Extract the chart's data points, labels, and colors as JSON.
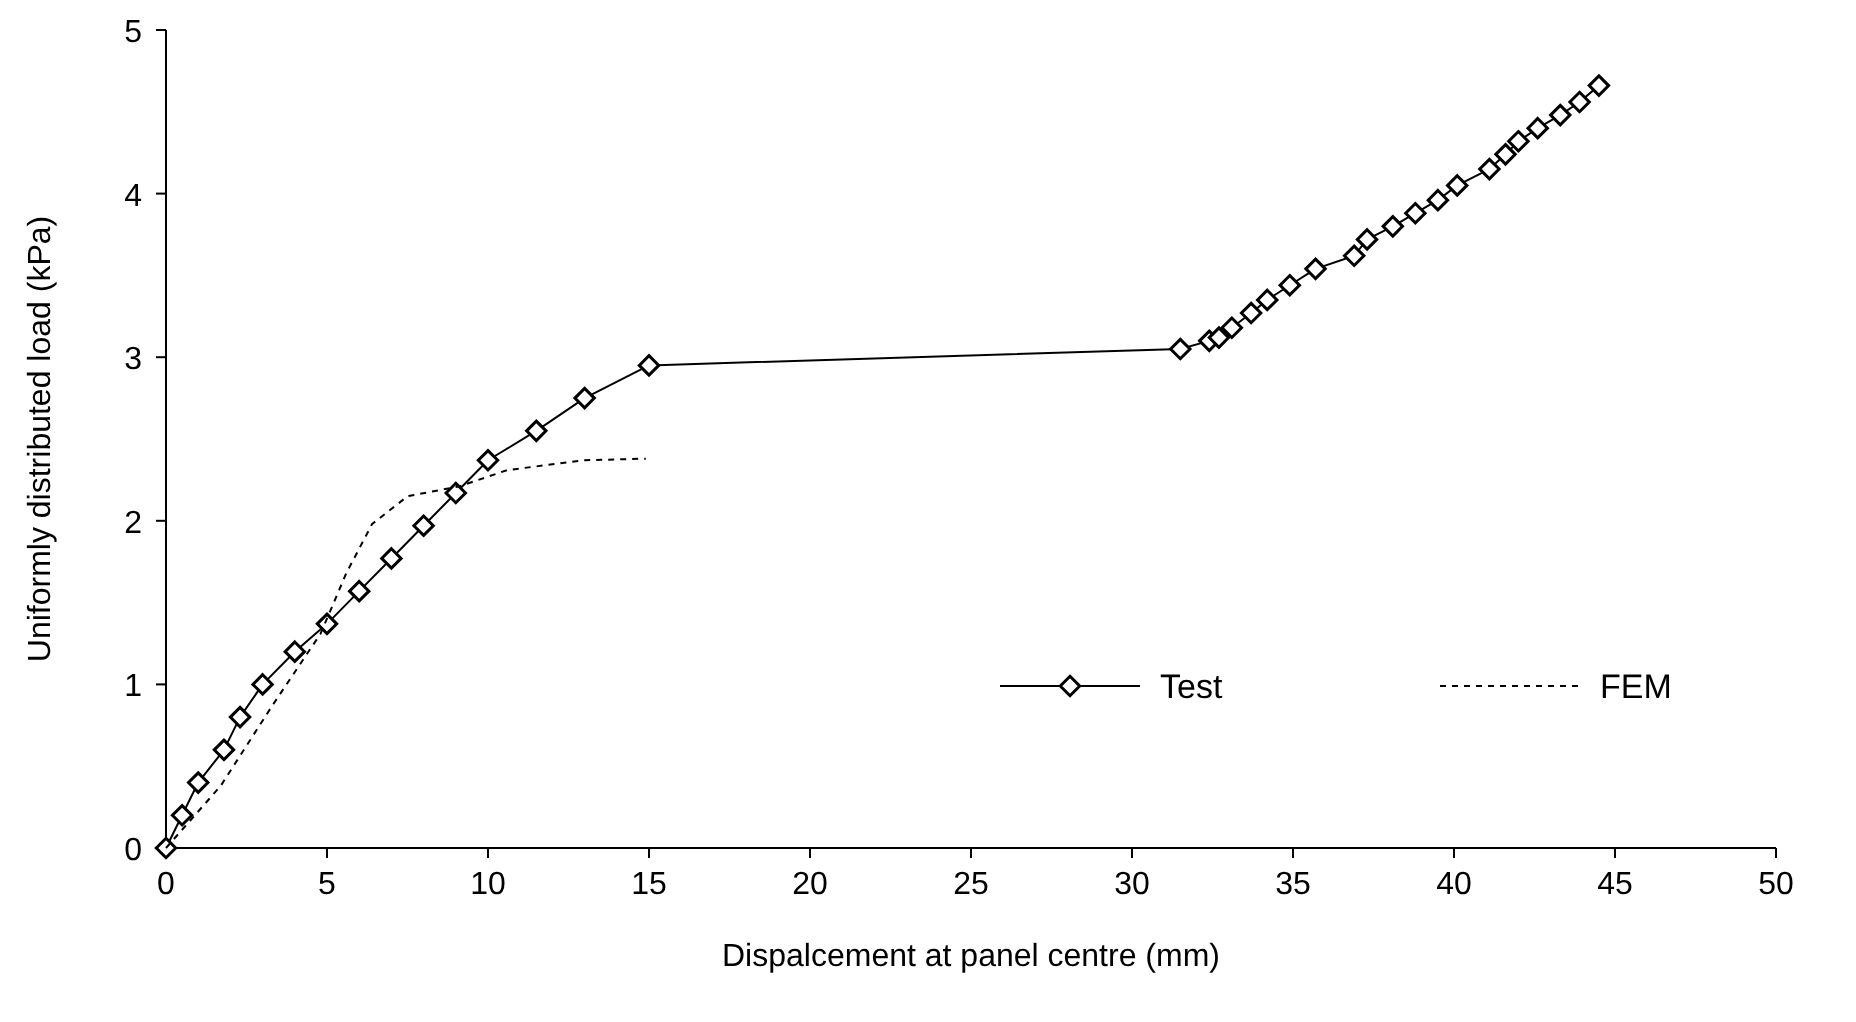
{
  "chart_data": {
    "type": "line",
    "xlabel": "Dispalcement at panel centre (mm)",
    "ylabel": "Uniformly distributed load (kPa)",
    "xlim": [
      0,
      50
    ],
    "xticks": [
      0,
      5,
      10,
      15,
      20,
      25,
      30,
      35,
      40,
      45,
      50
    ],
    "ylim": [
      0,
      5
    ],
    "yticks": [
      0,
      1,
      2,
      3,
      4,
      5
    ],
    "grid": false,
    "legend": "bottom right",
    "series": [
      {
        "name": "Test",
        "color": "#000000",
        "marker": "diamond",
        "line_style": "solid",
        "x": [
          0,
          0.5,
          1,
          1.8,
          2.3,
          3,
          4,
          5,
          6,
          7,
          8,
          9,
          10,
          11.5,
          13,
          15,
          31.5,
          32.4,
          32.7,
          33.1,
          33.7,
          34.2,
          34.9,
          35.7,
          36.9,
          37.3,
          38.1,
          38.8,
          39.5,
          40.1,
          41.1,
          41.6,
          42,
          42.6,
          43.3,
          43.9,
          44.5
        ],
        "values": [
          0,
          0.2,
          0.4,
          0.6,
          0.8,
          1,
          1.2,
          1.37,
          1.57,
          1.77,
          1.97,
          2.17,
          2.37,
          2.55,
          2.75,
          2.95,
          3.05,
          3.1,
          3.12,
          3.18,
          3.27,
          3.35,
          3.44,
          3.54,
          3.62,
          3.72,
          3.8,
          3.88,
          3.96,
          4.05,
          4.15,
          4.24,
          4.32,
          4.4,
          4.48,
          4.56,
          4.66
        ]
      },
      {
        "name": "FEM",
        "color": "#000000",
        "marker": "none",
        "line_style": "dashed",
        "x": [
          0,
          1.7,
          3.3,
          4.8,
          5.6,
          6.4,
          7.5,
          9.1,
          10.6,
          13,
          14.9
        ],
        "values": [
          0,
          0.38,
          0.87,
          1.31,
          1.68,
          1.98,
          2.15,
          2.21,
          2.31,
          2.37,
          2.38
        ]
      }
    ]
  }
}
